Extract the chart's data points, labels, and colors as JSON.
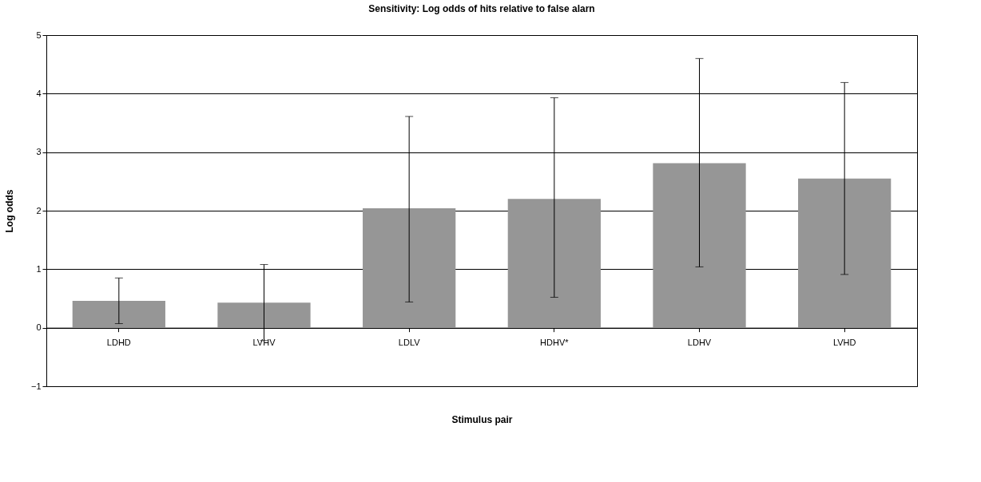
{
  "chart_data": {
    "type": "bar",
    "title": "Sensitivity: Log odds of hits relative to false alarn",
    "xlabel": "Stimulus pair",
    "ylabel": "Log odds",
    "categories": [
      "LDHD",
      "LVHV",
      "LDLV",
      "HDHV*",
      "LDHV",
      "LVHD"
    ],
    "values": [
      0.46,
      0.43,
      2.04,
      2.2,
      2.81,
      2.55
    ],
    "errors": [
      [
        0.07,
        0.85
      ],
      [
        -0.22,
        1.08
      ],
      [
        0.44,
        3.61
      ],
      [
        0.52,
        3.93
      ],
      [
        1.04,
        4.6
      ],
      [
        0.91,
        4.19
      ]
    ],
    "color": "#969696",
    "ylim": [
      -1,
      5
    ],
    "yticks": [
      -1,
      0,
      1,
      2,
      3,
      4,
      5
    ],
    "grid": "y"
  }
}
